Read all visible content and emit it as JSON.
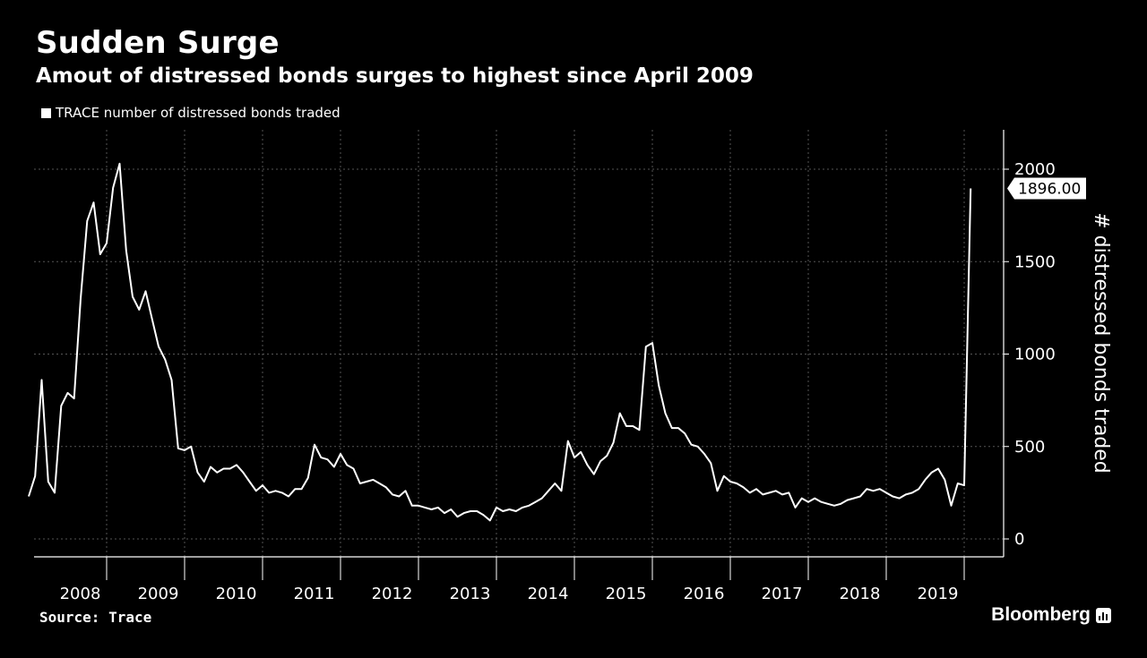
{
  "header": {
    "title": "Sudden Surge",
    "subtitle": "Amout of distressed bonds surges to highest since April 2009"
  },
  "footer": {
    "source": "Source: Trace",
    "brand": "Bloomberg",
    "brand_icon": "bar-chart-icon"
  },
  "colors": {
    "background": "#000000",
    "line": "#ffffff",
    "grid": "#555555"
  },
  "chart_data": {
    "type": "line",
    "title": "Sudden Surge",
    "subtitle": "Amout of distressed bonds surges to highest since April 2009",
    "xlabel": "",
    "ylabel": "# distressed bonds traded",
    "x_categories": [
      "2008",
      "2009",
      "2010",
      "2011",
      "2012",
      "2013",
      "2014",
      "2015",
      "2016",
      "2017",
      "2018",
      "2019"
    ],
    "ylim": [
      -100,
      2200
    ],
    "yticks": [
      0,
      500,
      1000,
      1500,
      2000
    ],
    "grid": true,
    "legend_position": "top-left",
    "last_value_label": "1896.00",
    "series": [
      {
        "name": "TRACE number of distressed bonds traded",
        "x_start": "2008-01",
        "frequency": "monthly",
        "values": [
          230,
          340,
          860,
          310,
          250,
          720,
          790,
          760,
          1300,
          1720,
          1820,
          1540,
          1600,
          1900,
          2030,
          1560,
          1310,
          1240,
          1340,
          1190,
          1040,
          970,
          860,
          490,
          480,
          500,
          360,
          310,
          390,
          360,
          380,
          380,
          400,
          360,
          310,
          260,
          290,
          250,
          260,
          250,
          230,
          270,
          270,
          330,
          510,
          440,
          430,
          390,
          460,
          400,
          380,
          300,
          310,
          320,
          300,
          280,
          240,
          230,
          260,
          180,
          180,
          170,
          160,
          170,
          140,
          160,
          120,
          140,
          150,
          150,
          130,
          100,
          170,
          150,
          160,
          150,
          170,
          180,
          200,
          220,
          260,
          300,
          260,
          530,
          440,
          470,
          400,
          350,
          420,
          450,
          520,
          680,
          610,
          610,
          590,
          1040,
          1060,
          830,
          680,
          600,
          600,
          570,
          510,
          500,
          460,
          410,
          260,
          340,
          310,
          300,
          280,
          250,
          270,
          240,
          250,
          260,
          240,
          250,
          170,
          220,
          200,
          220,
          200,
          190,
          180,
          190,
          210,
          220,
          230,
          270,
          260,
          270,
          250,
          230,
          220,
          240,
          250,
          270,
          320,
          360,
          380,
          320,
          180,
          300,
          290,
          1896
        ]
      }
    ]
  }
}
